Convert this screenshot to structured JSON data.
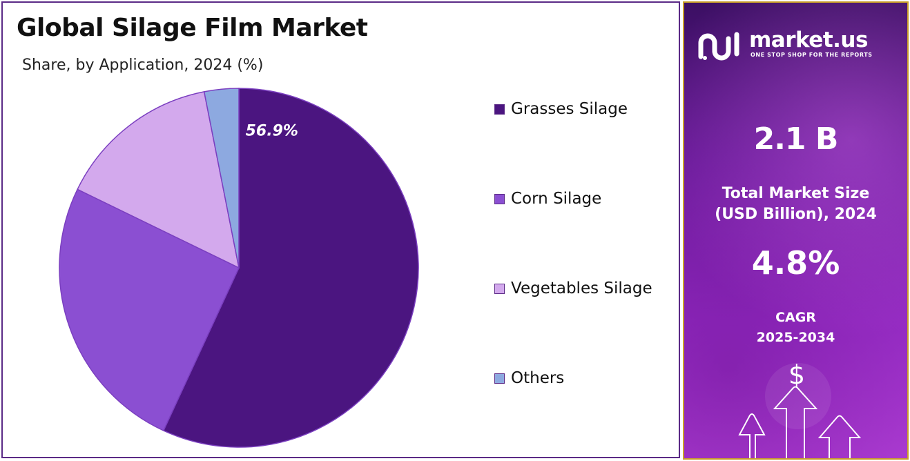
{
  "title": "Global Silage Film Market",
  "subtitle": "Share, by Application, 2024 (%)",
  "chart_data": {
    "type": "pie",
    "categories": [
      "Grasses Silage",
      "Corn Silage",
      "Vegetables Silage",
      "Others"
    ],
    "values": [
      56.9,
      25.3,
      14.7,
      3.1
    ],
    "colors": [
      "#4b1580",
      "#8b4fd2",
      "#d3a9ed",
      "#8da9e0"
    ],
    "data_labels": [
      "56.9%",
      "",
      "",
      ""
    ],
    "legend_position": "right"
  },
  "brand": {
    "name": "market.us",
    "tagline": "ONE STOP SHOP FOR THE REPORTS"
  },
  "stats": {
    "market_size_value": "2.1 B",
    "market_size_label_line1": "Total Market Size",
    "market_size_label_line2": "(USD Billion), 2024",
    "cagr_value": "4.8%",
    "cagr_label_line1": "CAGR",
    "cagr_label_line2": "2025-2034",
    "dollar_symbol": "$"
  },
  "colors": {
    "frame_border": "#5b2a86",
    "panel_border": "#c9a02a",
    "panel_top": "#3b0f63",
    "panel_bottom": "#b03ed6"
  }
}
